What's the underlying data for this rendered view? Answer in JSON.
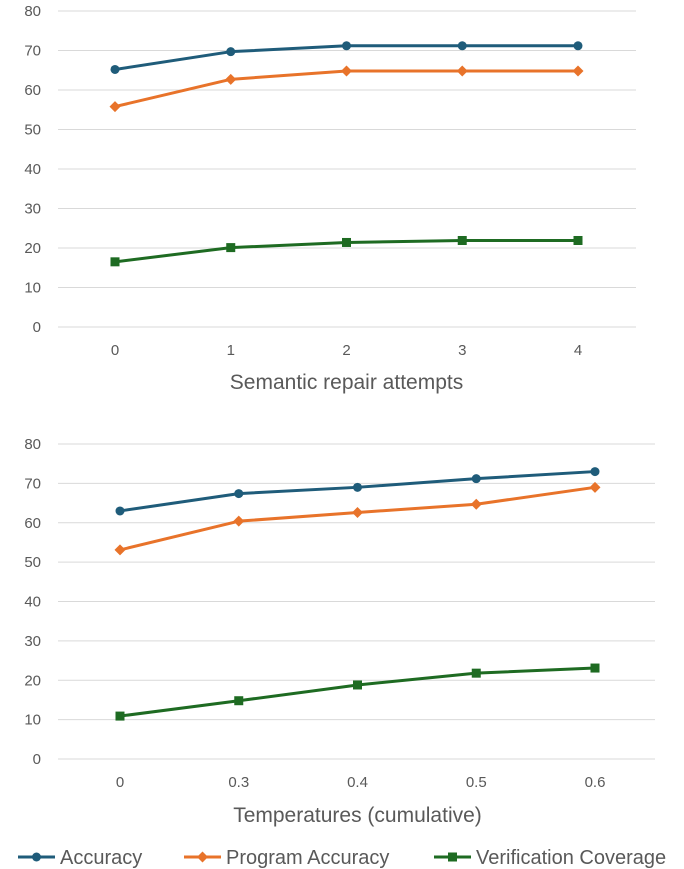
{
  "chart_data": [
    {
      "type": "line",
      "title": "",
      "xlabel": "Semantic repair attempts",
      "ylabel": "",
      "categories": [
        "0",
        "1",
        "2",
        "3",
        "4"
      ],
      "ylim": [
        0,
        80
      ],
      "yticks": [
        "0",
        "10",
        "20",
        "30",
        "40",
        "50",
        "60",
        "70",
        "80"
      ],
      "grid": true,
      "series": [
        {
          "name": "Accuracy",
          "values": [
            65.2,
            69.7,
            71.2,
            71.2,
            71.2
          ]
        },
        {
          "name": "Program Accuracy",
          "values": [
            55.8,
            62.7,
            64.8,
            64.8,
            64.8
          ]
        },
        {
          "name": "Verification Coverage",
          "values": [
            16.5,
            20.1,
            21.4,
            21.9,
            21.9
          ]
        }
      ]
    },
    {
      "type": "line",
      "title": "",
      "xlabel": "Temperatures (cumulative)",
      "ylabel": "",
      "categories": [
        "0",
        "0.3",
        "0.4",
        "0.5",
        "0.6"
      ],
      "ylim": [
        0,
        80
      ],
      "yticks": [
        "0",
        "10",
        "20",
        "30",
        "40",
        "50",
        "60",
        "70",
        "80"
      ],
      "grid": true,
      "series": [
        {
          "name": "Accuracy",
          "values": [
            63.0,
            67.4,
            69.0,
            71.2,
            73.0
          ]
        },
        {
          "name": "Program Accuracy",
          "values": [
            53.1,
            60.4,
            62.6,
            64.7,
            69.0
          ]
        },
        {
          "name": "Verification Coverage",
          "values": [
            10.9,
            14.8,
            18.8,
            21.8,
            23.1
          ]
        }
      ]
    }
  ],
  "legend": {
    "placement": "bottom",
    "items": [
      {
        "label": "Accuracy",
        "color": "#1f5c7a",
        "marker": "circle"
      },
      {
        "label": "Program Accuracy",
        "color": "#e8732a",
        "marker": "diamond"
      },
      {
        "label": "Verification Coverage",
        "color": "#1e6b22",
        "marker": "square"
      }
    ]
  }
}
